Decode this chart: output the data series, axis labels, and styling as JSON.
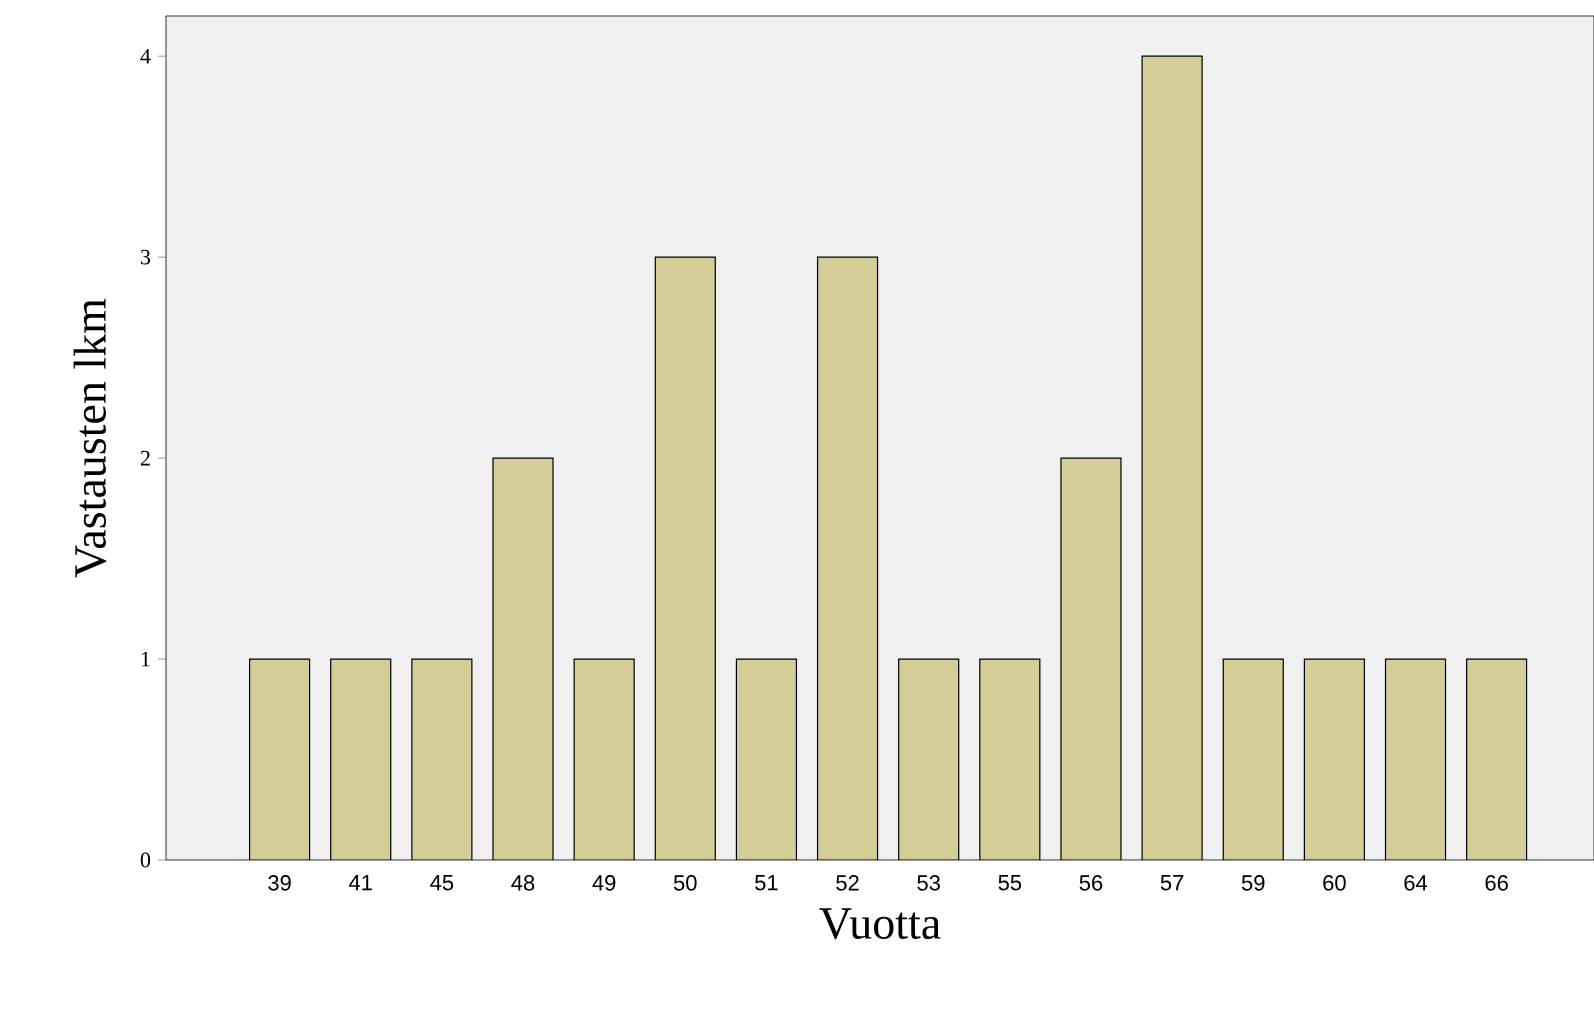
{
  "chart_data": {
    "type": "bar",
    "xlabel": "Vuotta",
    "ylabel": "Vastausten lkm",
    "categories": [
      "39",
      "41",
      "45",
      "48",
      "49",
      "50",
      "51",
      "52",
      "53",
      "55",
      "56",
      "57",
      "59",
      "60",
      "64",
      "66"
    ],
    "values": [
      1,
      1,
      1,
      2,
      1,
      3,
      1,
      3,
      1,
      1,
      2,
      4,
      1,
      1,
      1,
      1
    ],
    "color": "#d3ce97",
    "ylim": [
      0,
      4.2
    ],
    "yticks": [
      0,
      1,
      2,
      3,
      4
    ]
  }
}
